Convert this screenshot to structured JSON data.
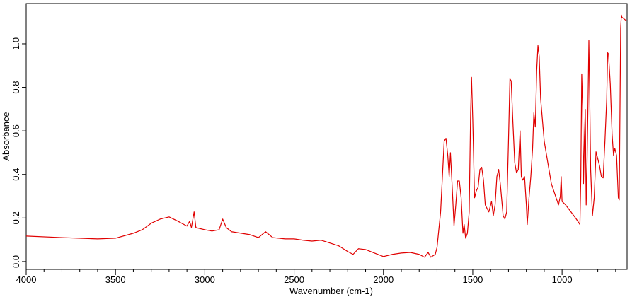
{
  "chart_data": {
    "type": "line",
    "xlabel": "Wavenumber (cm-1)",
    "ylabel": "Absorbance",
    "color": "#e00000",
    "xlim": [
      4000,
      636
    ],
    "ylim": [
      -0.036,
      1.185
    ],
    "xticks": [
      4000,
      3500,
      3000,
      2500,
      2000,
      1500,
      1000
    ],
    "xminorticks": [
      3900,
      3800,
      3700,
      3600,
      3400,
      3300,
      3200,
      3100,
      2900,
      2800,
      2700,
      2600,
      2400,
      2300,
      2200,
      2100,
      1900,
      1800,
      1700,
      1600,
      1400,
      1300,
      1200,
      1100,
      900,
      800,
      700
    ],
    "yticks": [
      {
        "value": 0,
        "label": "0.0"
      },
      0.2,
      0.4,
      0.6,
      0.8,
      {
        "value": 1,
        "label": "1.0"
      }
    ],
    "x": [
      4000,
      3800,
      3600,
      3500,
      3400,
      3350,
      3300,
      3250,
      3200,
      3150,
      3100,
      3085,
      3075,
      3060,
      3050,
      3000,
      2960,
      2920,
      2900,
      2880,
      2850,
      2750,
      2700,
      2660,
      2620,
      2550,
      2500,
      2450,
      2400,
      2350,
      2300,
      2250,
      2200,
      2170,
      2140,
      2100,
      2050,
      2000,
      1950,
      1900,
      1850,
      1800,
      1770,
      1750,
      1735,
      1710,
      1700,
      1680,
      1670,
      1660,
      1650,
      1640,
      1632,
      1625,
      1615,
      1605,
      1595,
      1585,
      1575,
      1565,
      1555,
      1548,
      1540,
      1530,
      1520,
      1512,
      1507,
      1500,
      1490,
      1480,
      1470,
      1460,
      1450,
      1440,
      1430,
      1410,
      1395,
      1385,
      1375,
      1365,
      1355,
      1345,
      1330,
      1320,
      1310,
      1300,
      1292,
      1285,
      1275,
      1265,
      1255,
      1245,
      1235,
      1228,
      1220,
      1210,
      1200,
      1195,
      1185,
      1175,
      1165,
      1158,
      1150,
      1142,
      1135,
      1128,
      1120,
      1100,
      1080,
      1060,
      1040,
      1020,
      1010,
      1005,
      1000,
      980,
      950,
      920,
      900,
      895,
      890,
      885,
      880,
      875,
      870,
      865,
      860,
      855,
      850,
      845,
      840,
      830,
      820,
      810,
      800,
      790,
      780,
      770,
      760,
      750,
      745,
      740,
      730,
      720,
      712,
      705,
      695,
      685,
      680,
      672,
      668,
      665,
      640
    ],
    "values": [
      0.117,
      0.11,
      0.104,
      0.107,
      0.13,
      0.146,
      0.176,
      0.195,
      0.205,
      0.185,
      0.163,
      0.185,
      0.156,
      0.228,
      0.156,
      0.146,
      0.14,
      0.146,
      0.195,
      0.156,
      0.137,
      0.124,
      0.11,
      0.137,
      0.11,
      0.104,
      0.104,
      0.098,
      0.094,
      0.098,
      0.085,
      0.072,
      0.046,
      0.033,
      0.059,
      0.055,
      0.039,
      0.023,
      0.033,
      0.039,
      0.042,
      0.033,
      0.02,
      0.042,
      0.02,
      0.033,
      0.065,
      0.228,
      0.39,
      0.553,
      0.566,
      0.488,
      0.39,
      0.5,
      0.34,
      0.163,
      0.26,
      0.37,
      0.37,
      0.293,
      0.13,
      0.17,
      0.107,
      0.13,
      0.228,
      0.683,
      0.846,
      0.65,
      0.293,
      0.325,
      0.341,
      0.423,
      0.433,
      0.374,
      0.26,
      0.228,
      0.276,
      0.211,
      0.26,
      0.39,
      0.423,
      0.351,
      0.211,
      0.195,
      0.228,
      0.553,
      0.839,
      0.83,
      0.634,
      0.455,
      0.407,
      0.423,
      0.6,
      0.39,
      0.374,
      0.39,
      0.26,
      0.17,
      0.293,
      0.39,
      0.52,
      0.683,
      0.618,
      0.878,
      0.992,
      0.943,
      0.748,
      0.553,
      0.455,
      0.358,
      0.309,
      0.26,
      0.299,
      0.39,
      0.276,
      0.26,
      0.228,
      0.195,
      0.17,
      0.39,
      0.862,
      0.715,
      0.358,
      0.569,
      0.699,
      0.26,
      0.455,
      0.715,
      1.015,
      0.748,
      0.423,
      0.211,
      0.293,
      0.504,
      0.472,
      0.439,
      0.39,
      0.384,
      0.553,
      0.748,
      0.959,
      0.953,
      0.813,
      0.585,
      0.488,
      0.52,
      0.488,
      0.293,
      0.283,
      1.073,
      1.132,
      1.122,
      1.106
    ]
  }
}
